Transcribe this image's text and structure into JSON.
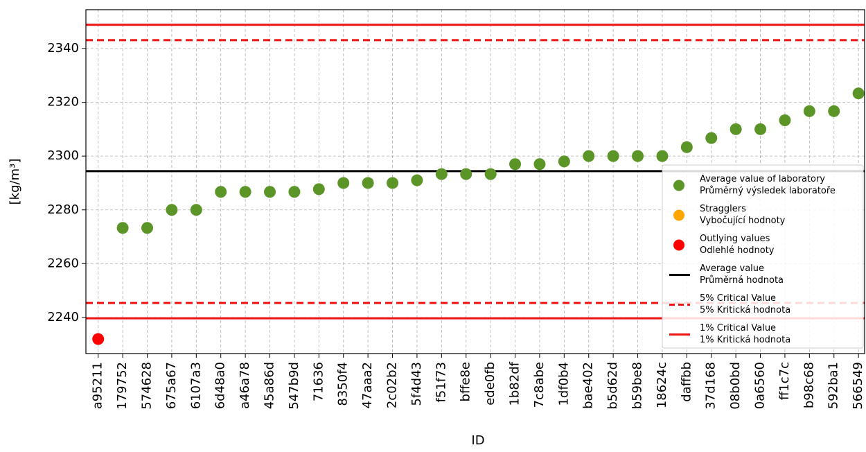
{
  "chart_data": {
    "type": "scatter",
    "xlabel": "ID",
    "ylabel": "[kg/m³]",
    "categories": [
      "a95211",
      "179752",
      "574628",
      "675a67",
      "6107a3",
      "6d48a0",
      "a46a78",
      "45a86d",
      "547b9d",
      "71636",
      "8350f4",
      "47aaa2",
      "2c02b2",
      "5f4d43",
      "f51f73",
      "bffe8e",
      "ede0fb",
      "1b82df",
      "7c8abe",
      "1df0b4",
      "bae402",
      "b5d62d",
      "b59be8",
      "18624c",
      "daffbb",
      "37d168",
      "08b0bd",
      "0a6560",
      "ff1c7c",
      "b98c68",
      "592ba1",
      "566549"
    ],
    "series": [
      {
        "name": [
          "Average value of laboratory",
          "Průměrný výsledek laboratoře"
        ],
        "color": "#5b9528",
        "values": [
          null,
          2273.3,
          2273.3,
          2280,
          2280,
          2286.7,
          2286.7,
          2286.7,
          2286.7,
          2287.7,
          2290,
          2290,
          2290,
          2291,
          2293.3,
          2293.3,
          2293.3,
          2297,
          2297,
          2298,
          2300,
          2300,
          2300,
          2300,
          2303.3,
          2306.7,
          2310,
          2310,
          2313.3,
          2316.7,
          2316.7,
          2323.3
        ]
      },
      {
        "name": [
          "Stragglers",
          "Vybočující hodnoty"
        ],
        "color": "#ffa500",
        "values": [
          null,
          null,
          null,
          null,
          null,
          null,
          null,
          null,
          null,
          null,
          null,
          null,
          null,
          null,
          null,
          null,
          null,
          null,
          null,
          null,
          null,
          null,
          null,
          null,
          null,
          null,
          null,
          null,
          null,
          null,
          null,
          null
        ]
      },
      {
        "name": [
          "Outlying values",
          "Odlehlé hodnoty"
        ],
        "color": "#ff0000",
        "values": [
          2232,
          null,
          null,
          null,
          null,
          null,
          null,
          null,
          null,
          null,
          null,
          null,
          null,
          null,
          null,
          null,
          null,
          null,
          null,
          null,
          null,
          null,
          null,
          null,
          null,
          null,
          null,
          null,
          null,
          null,
          null,
          null
        ]
      }
    ],
    "hlines": [
      {
        "name": [
          "Average value",
          "Průměrná hodnota"
        ],
        "color": "#000000",
        "style": "solid",
        "values": [
          2294.4
        ]
      },
      {
        "name": [
          "5% Critical Value",
          "5% Kritická hodnota"
        ],
        "color": "#ee1111",
        "style": "dashed",
        "values": [
          2343.1,
          2245.4
        ]
      },
      {
        "name": [
          "1% Critical Value",
          "1% Kritická hodnota"
        ],
        "color": "#ee1111",
        "style": "solid",
        "values": [
          2348.8,
          2239.7
        ]
      }
    ],
    "ylim": [
      2226.6,
      2354.4
    ],
    "yticks": [
      2240,
      2260,
      2280,
      2300,
      2320,
      2340
    ],
    "grid": true,
    "legend": "lower right"
  }
}
